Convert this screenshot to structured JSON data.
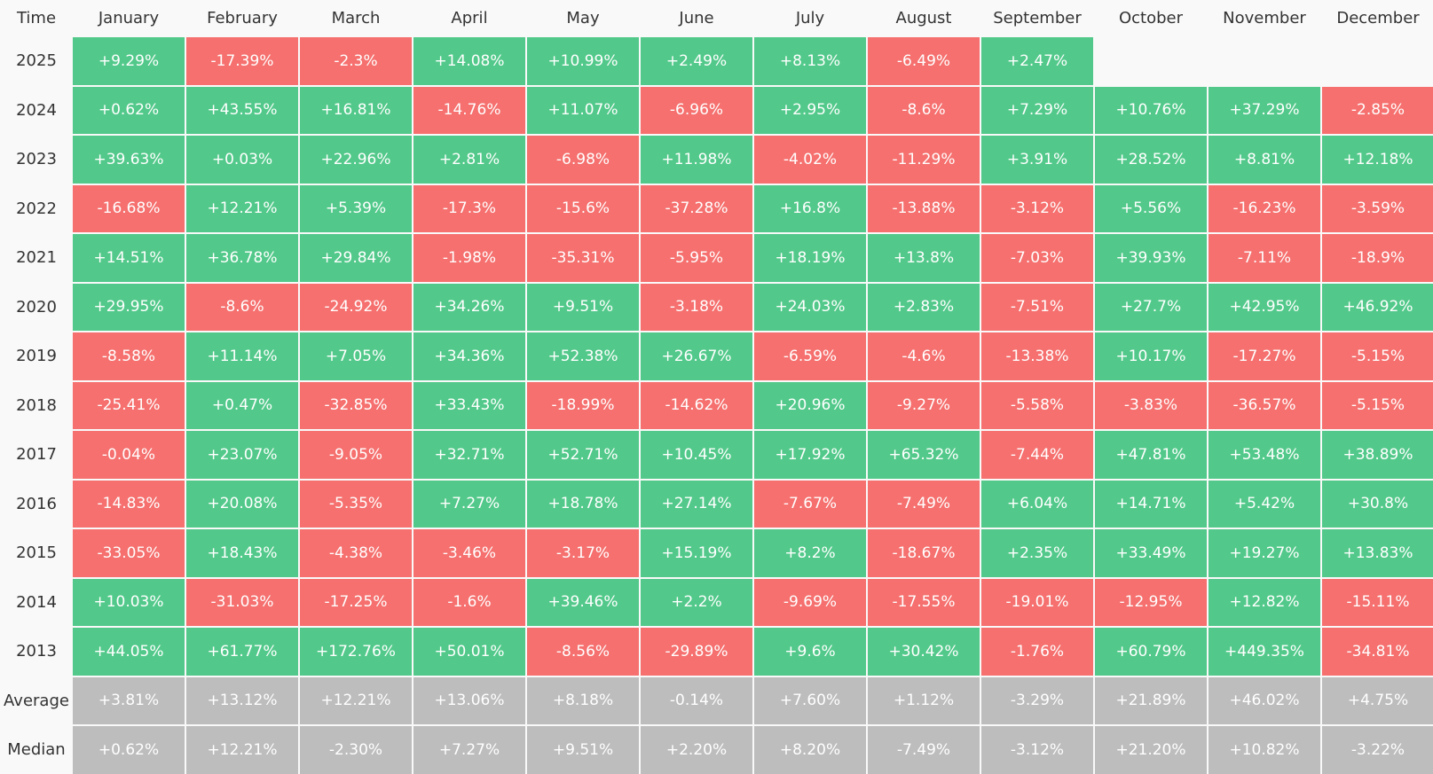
{
  "table": {
    "header": [
      "Time",
      "January",
      "February",
      "March",
      "April",
      "May",
      "June",
      "July",
      "August",
      "September",
      "October",
      "November",
      "December"
    ],
    "rows": [
      {
        "label": "2025",
        "cells": [
          "+9.29%",
          "-17.39%",
          "-2.3%",
          "+14.08%",
          "+10.99%",
          "+2.49%",
          "+8.13%",
          "-6.49%",
          "+2.47%"
        ]
      },
      {
        "label": "2024",
        "cells": [
          "+0.62%",
          "+43.55%",
          "+16.81%",
          "-14.76%",
          "+11.07%",
          "-6.96%",
          "+2.95%",
          "-8.6%",
          "+7.29%",
          "+10.76%",
          "+37.29%",
          "-2.85%"
        ]
      },
      {
        "label": "2023",
        "cells": [
          "+39.63%",
          "+0.03%",
          "+22.96%",
          "+2.81%",
          "-6.98%",
          "+11.98%",
          "-4.02%",
          "-11.29%",
          "+3.91%",
          "+28.52%",
          "+8.81%",
          "+12.18%"
        ]
      },
      {
        "label": "2022",
        "cells": [
          "-16.68%",
          "+12.21%",
          "+5.39%",
          "-17.3%",
          "-15.6%",
          "-37.28%",
          "+16.8%",
          "-13.88%",
          "-3.12%",
          "+5.56%",
          "-16.23%",
          "-3.59%"
        ]
      },
      {
        "label": "2021",
        "cells": [
          "+14.51%",
          "+36.78%",
          "+29.84%",
          "-1.98%",
          "-35.31%",
          "-5.95%",
          "+18.19%",
          "+13.8%",
          "-7.03%",
          "+39.93%",
          "-7.11%",
          "-18.9%"
        ]
      },
      {
        "label": "2020",
        "cells": [
          "+29.95%",
          "-8.6%",
          "-24.92%",
          "+34.26%",
          "+9.51%",
          "-3.18%",
          "+24.03%",
          "+2.83%",
          "-7.51%",
          "+27.7%",
          "+42.95%",
          "+46.92%"
        ]
      },
      {
        "label": "2019",
        "cells": [
          "-8.58%",
          "+11.14%",
          "+7.05%",
          "+34.36%",
          "+52.38%",
          "+26.67%",
          "-6.59%",
          "-4.6%",
          "-13.38%",
          "+10.17%",
          "-17.27%",
          "-5.15%"
        ]
      },
      {
        "label": "2018",
        "cells": [
          "-25.41%",
          "+0.47%",
          "-32.85%",
          "+33.43%",
          "-18.99%",
          "-14.62%",
          "+20.96%",
          "-9.27%",
          "-5.58%",
          "-3.83%",
          "-36.57%",
          "-5.15%"
        ]
      },
      {
        "label": "2017",
        "cells": [
          "-0.04%",
          "+23.07%",
          "-9.05%",
          "+32.71%",
          "+52.71%",
          "+10.45%",
          "+17.92%",
          "+65.32%",
          "-7.44%",
          "+47.81%",
          "+53.48%",
          "+38.89%"
        ]
      },
      {
        "label": "2016",
        "cells": [
          "-14.83%",
          "+20.08%",
          "-5.35%",
          "+7.27%",
          "+18.78%",
          "+27.14%",
          "-7.67%",
          "-7.49%",
          "+6.04%",
          "+14.71%",
          "+5.42%",
          "+30.8%"
        ]
      },
      {
        "label": "2015",
        "cells": [
          "-33.05%",
          "+18.43%",
          "-4.38%",
          "-3.46%",
          "-3.17%",
          "+15.19%",
          "+8.2%",
          "-18.67%",
          "+2.35%",
          "+33.49%",
          "+19.27%",
          "+13.83%"
        ]
      },
      {
        "label": "2014",
        "cells": [
          "+10.03%",
          "-31.03%",
          "-17.25%",
          "-1.6%",
          "+39.46%",
          "+2.2%",
          "-9.69%",
          "-17.55%",
          "-19.01%",
          "-12.95%",
          "+12.82%",
          "-15.11%"
        ]
      },
      {
        "label": "2013",
        "cells": [
          "+44.05%",
          "+61.77%",
          "+172.76%",
          "+50.01%",
          "-8.56%",
          "-29.89%",
          "+9.6%",
          "+30.42%",
          "-1.76%",
          "+60.79%",
          "+449.35%",
          "-34.81%"
        ]
      }
    ],
    "summary_rows": [
      {
        "label": "Average",
        "cells": [
          "+3.81%",
          "+13.12%",
          "+12.21%",
          "+13.06%",
          "+8.18%",
          "-0.14%",
          "+7.60%",
          "+1.12%",
          "-3.29%",
          "+21.89%",
          "+46.02%",
          "+4.75%"
        ]
      },
      {
        "label": "Median",
        "cells": [
          "+0.62%",
          "+12.21%",
          "-2.30%",
          "+7.27%",
          "+9.51%",
          "+2.20%",
          "+8.20%",
          "-7.49%",
          "-3.12%",
          "+21.20%",
          "+10.82%",
          "-3.22%"
        ]
      }
    ]
  }
}
